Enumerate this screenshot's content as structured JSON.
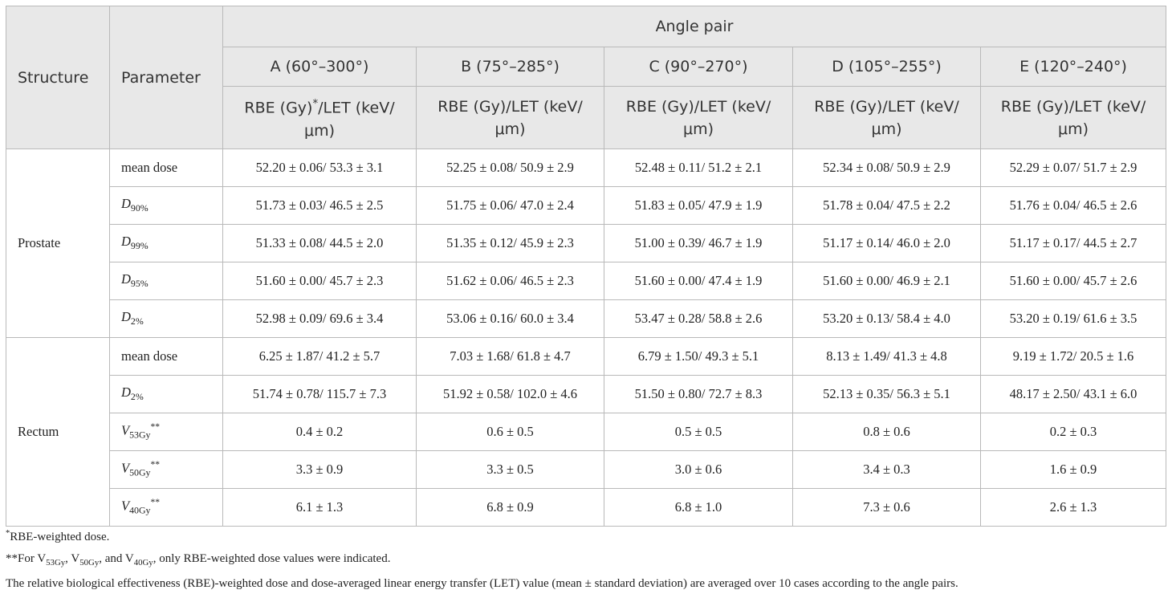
{
  "header": {
    "structure": "Structure",
    "parameter": "Parameter",
    "group": "Angle pair",
    "angles": [
      "A (60°–300°)",
      "B (75°–285°)",
      "C (90°–270°)",
      "D (105°–255°)",
      "E (120°–240°)"
    ],
    "units": [
      {
        "before": "RBE (Gy)",
        "sup": "*",
        "after": "/LET (keV/μm)"
      },
      "RBE (Gy)/LET (keV/μm)",
      "RBE (Gy)/LET (keV/μm)",
      "RBE (Gy)/LET (keV/μm)",
      "RBE (Gy)/LET (keV/μm)"
    ]
  },
  "groups": [
    {
      "structure": "Prostate",
      "rows": [
        {
          "parameter": "mean dose",
          "values": [
            "52.20 ± 0.06/ 53.3 ± 3.1",
            "52.25 ± 0.08/ 50.9 ± 2.9",
            "52.48 ± 0.11/ 51.2 ± 2.1",
            "52.34 ± 0.08/ 50.9 ± 2.9",
            "52.29 ± 0.07/ 51.7 ± 2.9"
          ]
        },
        {
          "parameter": {
            "symbol": "D",
            "sub": "90%"
          },
          "values": [
            "51.73 ± 0.03/ 46.5 ± 2.5",
            "51.75 ± 0.06/ 47.0 ± 2.4",
            "51.83 ± 0.05/ 47.9 ± 1.9",
            "51.78 ± 0.04/ 47.5 ± 2.2",
            "51.76 ± 0.04/ 46.5 ± 2.6"
          ]
        },
        {
          "parameter": {
            "symbol": "D",
            "sub": "99%"
          },
          "values": [
            "51.33 ± 0.08/ 44.5 ± 2.0",
            "51.35 ± 0.12/ 45.9 ± 2.3",
            "51.00 ± 0.39/ 46.7 ± 1.9",
            "51.17 ± 0.14/ 46.0 ± 2.0",
            "51.17 ± 0.17/ 44.5 ± 2.7"
          ]
        },
        {
          "parameter": {
            "symbol": "D",
            "sub": "95%"
          },
          "values": [
            "51.60 ± 0.00/ 45.7 ± 2.3",
            "51.62 ± 0.06/ 46.5 ± 2.3",
            "51.60 ± 0.00/ 47.4 ± 1.9",
            "51.60 ± 0.00/ 46.9 ± 2.1",
            "51.60 ± 0.00/ 45.7 ± 2.6"
          ]
        },
        {
          "parameter": {
            "symbol": "D",
            "sub": "2%"
          },
          "values": [
            "52.98 ± 0.09/ 69.6 ± 3.4",
            "53.06 ± 0.16/ 60.0 ± 3.4",
            "53.47 ± 0.28/ 58.8 ± 2.6",
            "53.20 ± 0.13/ 58.4 ± 4.0",
            "53.20 ± 0.19/ 61.6 ± 3.5"
          ]
        }
      ]
    },
    {
      "structure": "Rectum",
      "rows": [
        {
          "parameter": "mean dose",
          "values": [
            "6.25 ± 1.87/ 41.2 ± 5.7",
            "7.03 ± 1.68/ 61.8 ± 4.7",
            "6.79 ± 1.50/ 49.3 ± 5.1",
            "8.13 ± 1.49/ 41.3 ± 4.8",
            "9.19 ± 1.72/ 20.5 ± 1.6"
          ]
        },
        {
          "parameter": {
            "symbol": "D",
            "sub": "2%"
          },
          "values": [
            "51.74 ± 0.78/ 115.7 ± 7.3",
            "51.92 ± 0.58/ 102.0 ± 4.6",
            "51.50 ± 0.80/ 72.7 ± 8.3",
            "52.13 ± 0.35/ 56.3 ± 5.1",
            "48.17 ± 2.50/ 43.1 ± 6.0"
          ]
        },
        {
          "parameter": {
            "symbol": "V",
            "sub": "53Gy",
            "sup": "**"
          },
          "values": [
            "0.4 ± 0.2",
            "0.6 ± 0.5",
            "0.5 ± 0.5",
            "0.8 ± 0.6",
            "0.2 ± 0.3"
          ]
        },
        {
          "parameter": {
            "symbol": "V",
            "sub": "50Gy",
            "sup": "**"
          },
          "values": [
            "3.3 ± 0.9",
            "3.3 ± 0.5",
            "3.0 ± 0.6",
            "3.4 ± 0.3",
            "1.6 ± 0.9"
          ]
        },
        {
          "parameter": {
            "symbol": "V",
            "sub": "40Gy",
            "sup": "**"
          },
          "values": [
            "6.1 ± 1.3",
            "6.8 ± 0.9",
            "6.8 ± 1.0",
            "7.3 ± 0.6",
            "2.6 ± 1.3"
          ]
        }
      ]
    }
  ],
  "footnotes": [
    [
      "*",
      "RBE-weighted dose."
    ],
    [
      "**For V",
      "53Gy",
      ", V",
      "50Gy",
      ", and V",
      "40Gy",
      ", only RBE-weighted dose values were indicated."
    ],
    "The relative biological effectiveness (RBE)-weighted dose and dose-averaged linear energy transfer (LET) value (mean ± standard deviation) are averaged over 10 cases according to the angle pairs."
  ]
}
